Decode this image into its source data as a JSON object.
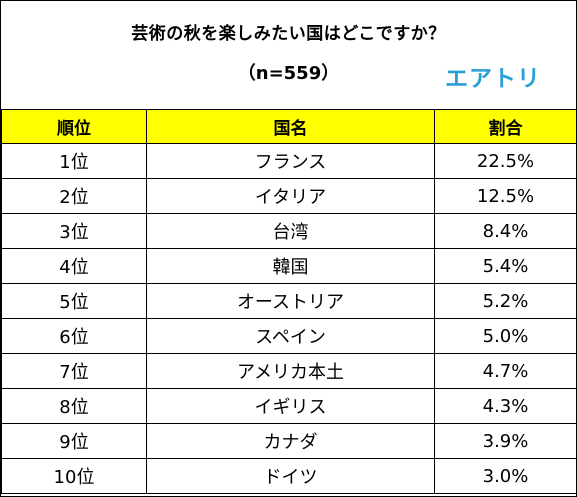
{
  "title": "芸術の秋を楽しみたい国はどこですか？",
  "subtitle": "（n=559）",
  "logo": "エアトリ",
  "table": {
    "headers": [
      "順位",
      "国名",
      "割合"
    ],
    "rows": [
      {
        "rank": "1位",
        "country": "フランス",
        "share": "22.5%"
      },
      {
        "rank": "2位",
        "country": "イタリア",
        "share": "12.5%"
      },
      {
        "rank": "3位",
        "country": "台湾",
        "share": "8.4%"
      },
      {
        "rank": "4位",
        "country": "韓国",
        "share": "5.4%"
      },
      {
        "rank": "5位",
        "country": "オーストリア",
        "share": "5.2%"
      },
      {
        "rank": "6位",
        "country": "スペイン",
        "share": "5.0%"
      },
      {
        "rank": "7位",
        "country": "アメリカ本土",
        "share": "4.7%"
      },
      {
        "rank": "8位",
        "country": "イギリス",
        "share": "4.3%"
      },
      {
        "rank": "9位",
        "country": "カナダ",
        "share": "3.9%"
      },
      {
        "rank": "10位",
        "country": "ドイツ",
        "share": "3.0%"
      }
    ]
  },
  "colors": {
    "header_bg": "#ffff00",
    "logo": "#2a9fd6",
    "border": "#000000"
  }
}
